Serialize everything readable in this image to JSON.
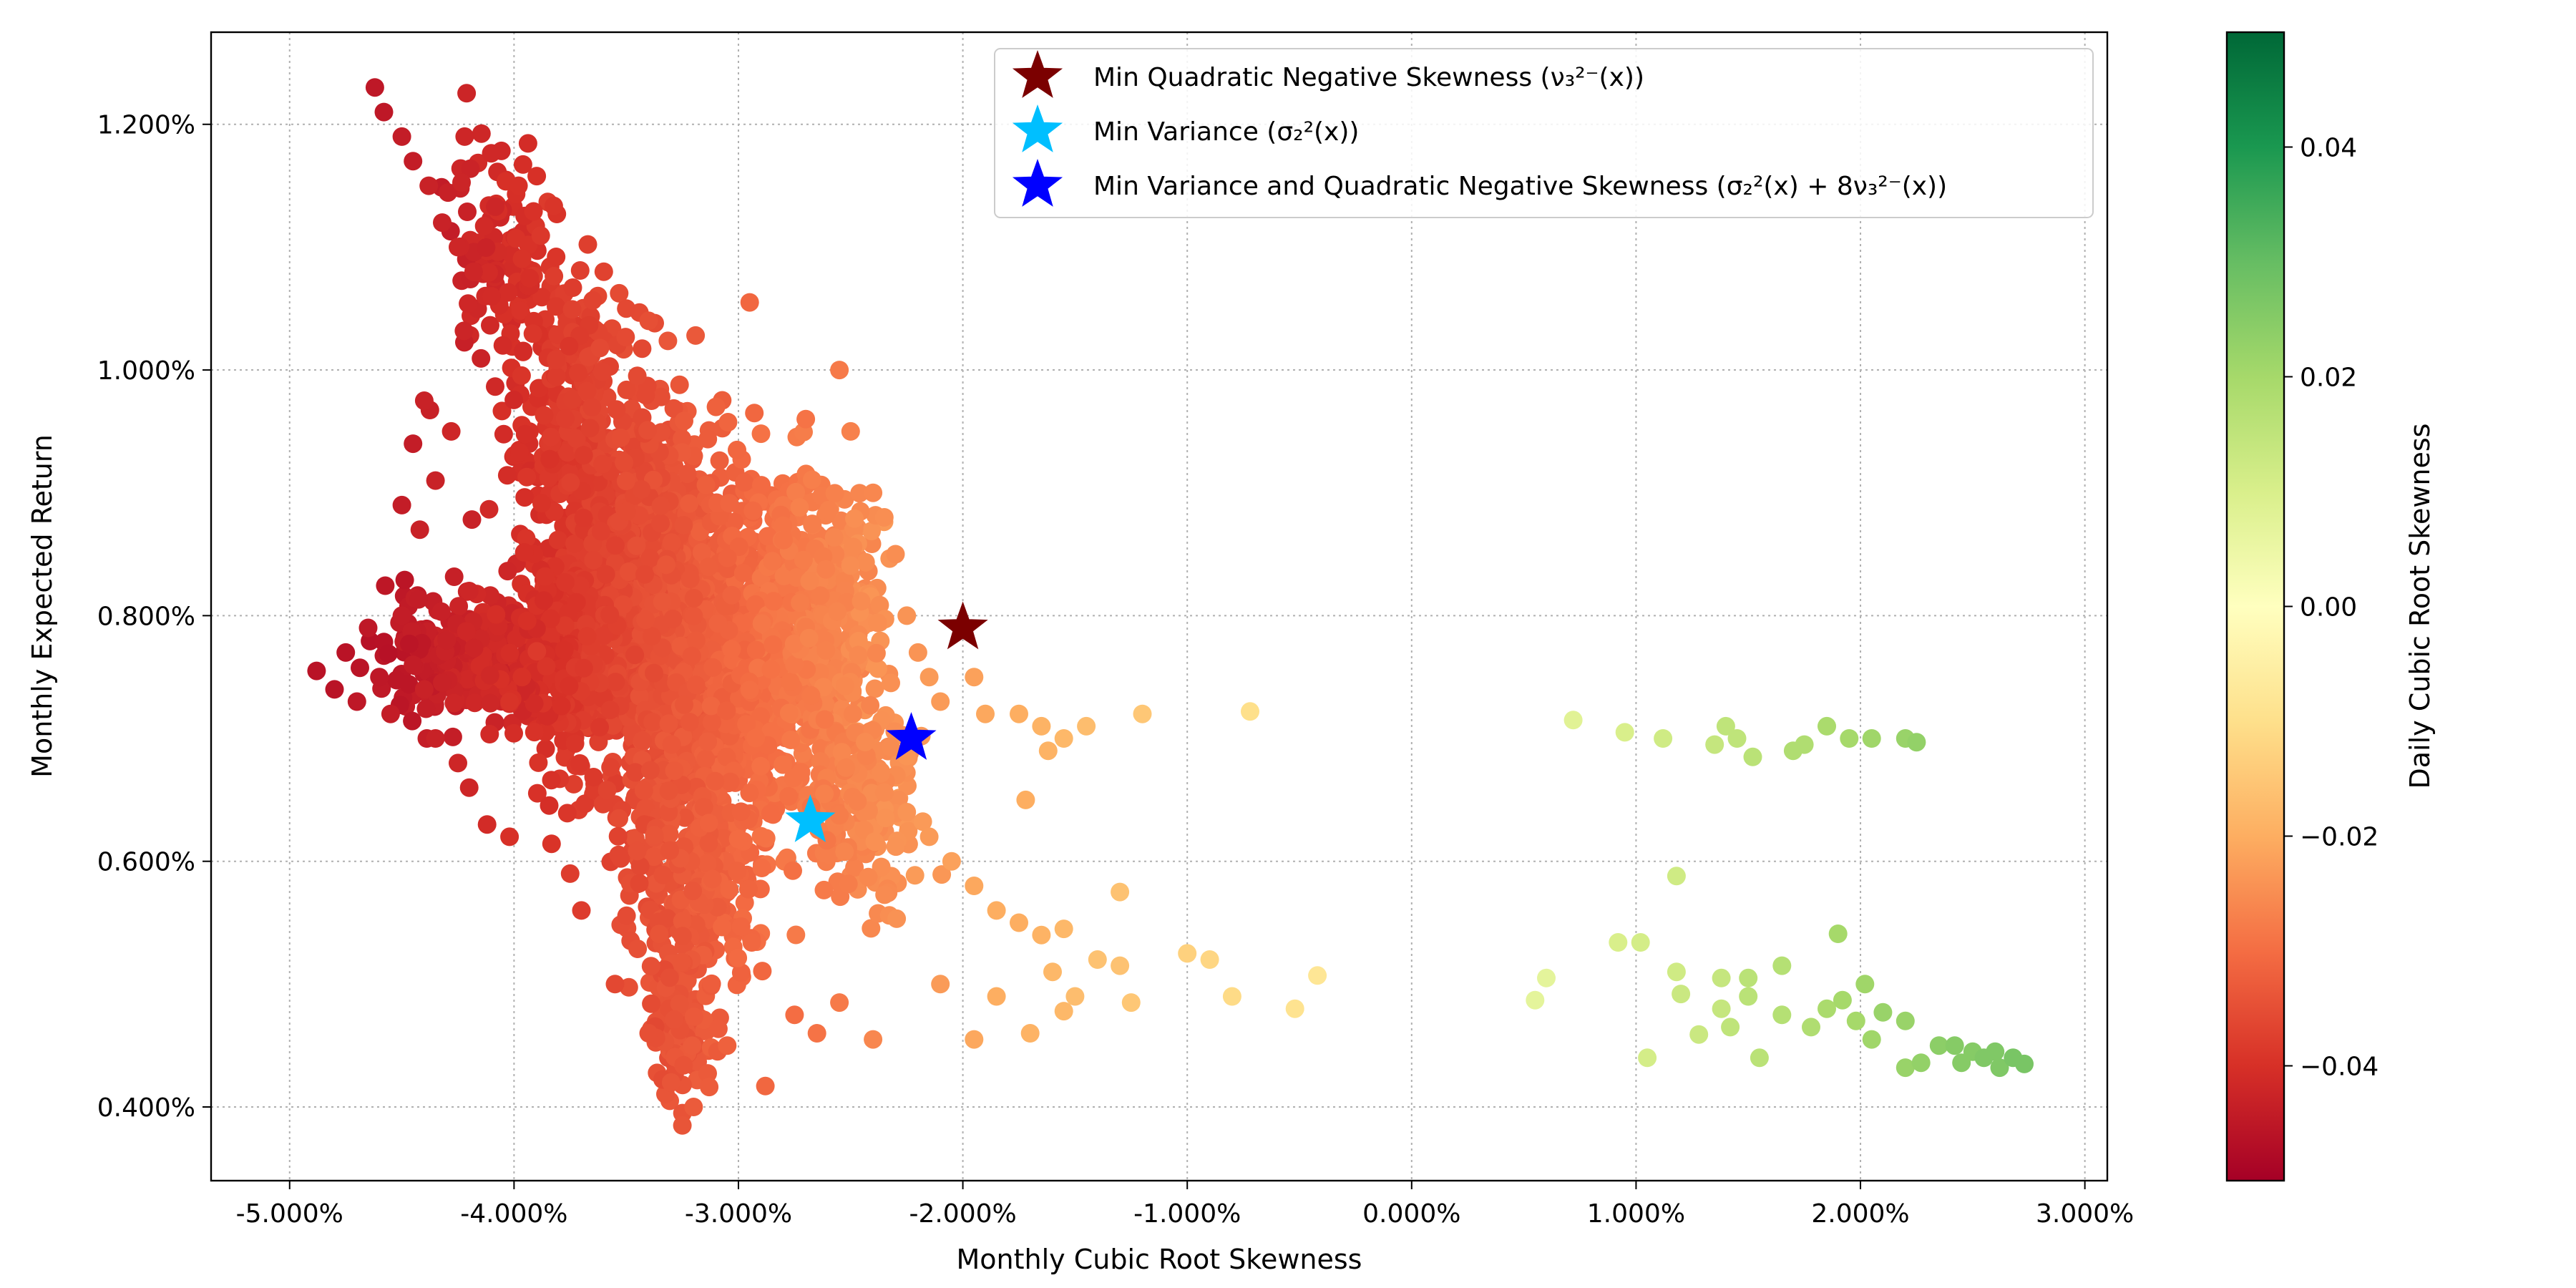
{
  "chart_data": {
    "type": "scatter",
    "title": "",
    "xlabel": "Monthly Cubic Root Skewness",
    "ylabel": "Monthly Expected Return",
    "xlim": [
      -5.35,
      3.1
    ],
    "ylim": [
      0.34,
      1.275
    ],
    "x_ticks": [
      {
        "value": -5,
        "label": "-5.000%"
      },
      {
        "value": -4,
        "label": "-4.000%"
      },
      {
        "value": -3,
        "label": "-3.000%"
      },
      {
        "value": -2,
        "label": "-2.000%"
      },
      {
        "value": -1,
        "label": "-1.000%"
      },
      {
        "value": 0,
        "label": "0.000%"
      },
      {
        "value": 1,
        "label": "1.000%"
      },
      {
        "value": 2,
        "label": "2.000%"
      },
      {
        "value": 3,
        "label": "3.000%"
      }
    ],
    "y_ticks": [
      {
        "value": 0.4,
        "label": "0.400%"
      },
      {
        "value": 0.6,
        "label": "0.600%"
      },
      {
        "value": 0.8,
        "label": "0.800%"
      },
      {
        "value": 1.0,
        "label": "1.000%"
      },
      {
        "value": 1.2,
        "label": "1.200%"
      }
    ],
    "grid": true,
    "legend_position": "top-right",
    "colorbar": {
      "label": "Daily Cubic Root Skewness",
      "colormap": "RdYlGn",
      "range": [
        -0.05,
        0.05
      ],
      "ticks": [
        {
          "value": -0.04,
          "label": "−0.04"
        },
        {
          "value": -0.02,
          "label": "−0.02"
        },
        {
          "value": 0.0,
          "label": "0.00"
        },
        {
          "value": 0.02,
          "label": "0.02"
        },
        {
          "value": 0.04,
          "label": "0.04"
        }
      ]
    },
    "markers": [
      {
        "name": "Min Quadratic Negative Skewness (ν₃²⁻(x))",
        "x": -2.0,
        "y": 0.79,
        "color": "#7b0000"
      },
      {
        "name": "Min Variance (σ₂²(x))",
        "x": -2.68,
        "y": 0.633,
        "color": "#00bfff"
      },
      {
        "name": "Min Variance and Quadratic Negative Skewness (σ₂²(x) + 8ν₃²⁻(x))",
        "x": -2.23,
        "y": 0.7,
        "color": "#0000ff"
      }
    ],
    "scatter_points": [
      {
        "x": -4.88,
        "y": 0.755,
        "c": -0.046
      },
      {
        "x": -4.8,
        "y": 0.74,
        "c": -0.046
      },
      {
        "x": -4.75,
        "y": 0.77,
        "c": -0.046
      },
      {
        "x": -4.7,
        "y": 0.73,
        "c": -0.045
      },
      {
        "x": -4.65,
        "y": 0.79,
        "c": -0.045
      },
      {
        "x": -4.6,
        "y": 0.75,
        "c": -0.045
      },
      {
        "x": -4.55,
        "y": 0.72,
        "c": -0.044
      },
      {
        "x": -4.5,
        "y": 0.8,
        "c": -0.044
      },
      {
        "x": -4.45,
        "y": 0.76,
        "c": -0.044
      },
      {
        "x": -4.4,
        "y": 0.74,
        "c": -0.043
      },
      {
        "x": -4.35,
        "y": 0.7,
        "c": -0.043
      },
      {
        "x": -4.3,
        "y": 0.78,
        "c": -0.043
      },
      {
        "x": -4.25,
        "y": 0.68,
        "c": -0.042
      },
      {
        "x": -4.2,
        "y": 0.82,
        "c": -0.042
      },
      {
        "x": -4.62,
        "y": 1.23,
        "c": -0.045
      },
      {
        "x": -4.58,
        "y": 1.21,
        "c": -0.045
      },
      {
        "x": -4.5,
        "y": 1.19,
        "c": -0.044
      },
      {
        "x": -4.45,
        "y": 1.17,
        "c": -0.044
      },
      {
        "x": -4.38,
        "y": 1.15,
        "c": -0.043
      },
      {
        "x": -4.32,
        "y": 1.12,
        "c": -0.043
      },
      {
        "x": -4.25,
        "y": 1.1,
        "c": -0.042
      },
      {
        "x": -4.18,
        "y": 1.08,
        "c": -0.042
      },
      {
        "x": -4.1,
        "y": 1.06,
        "c": -0.041
      },
      {
        "x": -4.22,
        "y": 1.19,
        "c": -0.042
      },
      {
        "x": -3.98,
        "y": 1.15,
        "c": -0.04
      },
      {
        "x": -4.05,
        "y": 1.02,
        "c": -0.041
      },
      {
        "x": -4.4,
        "y": 0.975,
        "c": -0.043
      },
      {
        "x": -4.45,
        "y": 0.94,
        "c": -0.044
      },
      {
        "x": -4.5,
        "y": 0.89,
        "c": -0.044
      },
      {
        "x": -4.42,
        "y": 0.87,
        "c": -0.043
      },
      {
        "x": -4.35,
        "y": 0.91,
        "c": -0.043
      },
      {
        "x": -4.28,
        "y": 0.95,
        "c": -0.042
      },
      {
        "x": -4.12,
        "y": 0.63,
        "c": -0.041
      },
      {
        "x": -4.02,
        "y": 0.62,
        "c": -0.04
      },
      {
        "x": -4.2,
        "y": 0.66,
        "c": -0.042
      },
      {
        "x": -3.6,
        "y": 1.08,
        "c": -0.037
      },
      {
        "x": -3.5,
        "y": 1.05,
        "c": -0.036
      },
      {
        "x": -3.4,
        "y": 1.04,
        "c": -0.035
      },
      {
        "x": -2.95,
        "y": 1.055,
        "c": -0.031
      },
      {
        "x": -2.55,
        "y": 1.0,
        "c": -0.028
      },
      {
        "x": -3.1,
        "y": 0.97,
        "c": -0.032
      },
      {
        "x": -2.7,
        "y": 0.96,
        "c": -0.029
      },
      {
        "x": -2.5,
        "y": 0.95,
        "c": -0.027
      },
      {
        "x": -2.4,
        "y": 0.9,
        "c": -0.026
      },
      {
        "x": -2.3,
        "y": 0.85,
        "c": -0.025
      },
      {
        "x": -2.35,
        "y": 0.88,
        "c": -0.025
      },
      {
        "x": -2.25,
        "y": 0.8,
        "c": -0.024
      },
      {
        "x": -2.2,
        "y": 0.77,
        "c": -0.024
      },
      {
        "x": -2.15,
        "y": 0.75,
        "c": -0.023
      },
      {
        "x": -2.1,
        "y": 0.73,
        "c": -0.023
      },
      {
        "x": -1.95,
        "y": 0.75,
        "c": -0.022
      },
      {
        "x": -1.9,
        "y": 0.72,
        "c": -0.021
      },
      {
        "x": -1.75,
        "y": 0.72,
        "c": -0.02
      },
      {
        "x": -1.65,
        "y": 0.71,
        "c": -0.019
      },
      {
        "x": -1.55,
        "y": 0.7,
        "c": -0.018
      },
      {
        "x": -1.45,
        "y": 0.71,
        "c": -0.017
      },
      {
        "x": -1.2,
        "y": 0.72,
        "c": -0.015
      },
      {
        "x": -0.72,
        "y": 0.722,
        "c": -0.01
      },
      {
        "x": -1.62,
        "y": 0.69,
        "c": -0.019
      },
      {
        "x": -1.72,
        "y": 0.65,
        "c": -0.02
      },
      {
        "x": -2.25,
        "y": 0.64,
        "c": -0.024
      },
      {
        "x": -2.15,
        "y": 0.62,
        "c": -0.023
      },
      {
        "x": -2.05,
        "y": 0.6,
        "c": -0.022
      },
      {
        "x": -1.95,
        "y": 0.58,
        "c": -0.021
      },
      {
        "x": -1.85,
        "y": 0.56,
        "c": -0.02
      },
      {
        "x": -1.75,
        "y": 0.55,
        "c": -0.02
      },
      {
        "x": -1.65,
        "y": 0.54,
        "c": -0.019
      },
      {
        "x": -1.55,
        "y": 0.545,
        "c": -0.018
      },
      {
        "x": -1.3,
        "y": 0.575,
        "c": -0.016
      },
      {
        "x": -1.6,
        "y": 0.51,
        "c": -0.018
      },
      {
        "x": -1.5,
        "y": 0.49,
        "c": -0.017
      },
      {
        "x": -1.4,
        "y": 0.52,
        "c": -0.016
      },
      {
        "x": -1.3,
        "y": 0.515,
        "c": -0.016
      },
      {
        "x": -1.25,
        "y": 0.485,
        "c": -0.015
      },
      {
        "x": -1.0,
        "y": 0.525,
        "c": -0.013
      },
      {
        "x": -0.9,
        "y": 0.52,
        "c": -0.012
      },
      {
        "x": -0.8,
        "y": 0.49,
        "c": -0.011
      },
      {
        "x": -0.52,
        "y": 0.48,
        "c": -0.009
      },
      {
        "x": -0.42,
        "y": 0.507,
        "c": -0.008
      },
      {
        "x": -1.55,
        "y": 0.478,
        "c": -0.018
      },
      {
        "x": -1.7,
        "y": 0.46,
        "c": -0.019
      },
      {
        "x": -1.85,
        "y": 0.49,
        "c": -0.02
      },
      {
        "x": -1.95,
        "y": 0.455,
        "c": -0.021
      },
      {
        "x": -2.1,
        "y": 0.5,
        "c": -0.023
      },
      {
        "x": -2.4,
        "y": 0.455,
        "c": -0.026
      },
      {
        "x": -2.65,
        "y": 0.46,
        "c": -0.029
      },
      {
        "x": -2.88,
        "y": 0.417,
        "c": -0.031
      },
      {
        "x": -2.55,
        "y": 0.485,
        "c": -0.028
      },
      {
        "x": -2.75,
        "y": 0.475,
        "c": -0.03
      },
      {
        "x": -3.05,
        "y": 0.45,
        "c": -0.032
      },
      {
        "x": -3.3,
        "y": 0.42,
        "c": -0.034
      },
      {
        "x": -3.25,
        "y": 0.385,
        "c": -0.034
      },
      {
        "x": -3.2,
        "y": 0.4,
        "c": -0.033
      },
      {
        "x": -3.4,
        "y": 0.46,
        "c": -0.035
      },
      {
        "x": -3.55,
        "y": 0.5,
        "c": -0.036
      },
      {
        "x": -3.7,
        "y": 0.56,
        "c": -0.038
      },
      {
        "x": -3.75,
        "y": 0.59,
        "c": -0.038
      },
      {
        "x": 0.72,
        "y": 0.715,
        "c": 0.008
      },
      {
        "x": 0.95,
        "y": 0.705,
        "c": 0.01
      },
      {
        "x": 1.12,
        "y": 0.7,
        "c": 0.012
      },
      {
        "x": 1.35,
        "y": 0.695,
        "c": 0.014
      },
      {
        "x": 1.4,
        "y": 0.71,
        "c": 0.015
      },
      {
        "x": 1.45,
        "y": 0.7,
        "c": 0.015
      },
      {
        "x": 1.52,
        "y": 0.685,
        "c": 0.016
      },
      {
        "x": 1.7,
        "y": 0.69,
        "c": 0.018
      },
      {
        "x": 1.75,
        "y": 0.695,
        "c": 0.018
      },
      {
        "x": 1.85,
        "y": 0.71,
        "c": 0.019
      },
      {
        "x": 1.95,
        "y": 0.7,
        "c": 0.02
      },
      {
        "x": 2.05,
        "y": 0.7,
        "c": 0.021
      },
      {
        "x": 2.2,
        "y": 0.7,
        "c": 0.022
      },
      {
        "x": 2.25,
        "y": 0.697,
        "c": 0.023
      },
      {
        "x": 0.55,
        "y": 0.487,
        "c": 0.007
      },
      {
        "x": 0.6,
        "y": 0.505,
        "c": 0.007
      },
      {
        "x": 0.92,
        "y": 0.534,
        "c": 0.01
      },
      {
        "x": 1.02,
        "y": 0.534,
        "c": 0.011
      },
      {
        "x": 1.05,
        "y": 0.44,
        "c": 0.011
      },
      {
        "x": 1.18,
        "y": 0.588,
        "c": 0.012
      },
      {
        "x": 1.18,
        "y": 0.51,
        "c": 0.012
      },
      {
        "x": 1.2,
        "y": 0.492,
        "c": 0.013
      },
      {
        "x": 1.28,
        "y": 0.459,
        "c": 0.013
      },
      {
        "x": 1.38,
        "y": 0.48,
        "c": 0.014
      },
      {
        "x": 1.38,
        "y": 0.505,
        "c": 0.014
      },
      {
        "x": 1.42,
        "y": 0.465,
        "c": 0.015
      },
      {
        "x": 1.5,
        "y": 0.49,
        "c": 0.016
      },
      {
        "x": 1.5,
        "y": 0.505,
        "c": 0.016
      },
      {
        "x": 1.55,
        "y": 0.44,
        "c": 0.016
      },
      {
        "x": 1.65,
        "y": 0.515,
        "c": 0.017
      },
      {
        "x": 1.65,
        "y": 0.475,
        "c": 0.017
      },
      {
        "x": 1.78,
        "y": 0.465,
        "c": 0.018
      },
      {
        "x": 1.85,
        "y": 0.48,
        "c": 0.019
      },
      {
        "x": 1.9,
        "y": 0.541,
        "c": 0.02
      },
      {
        "x": 1.92,
        "y": 0.487,
        "c": 0.02
      },
      {
        "x": 1.98,
        "y": 0.47,
        "c": 0.02
      },
      {
        "x": 2.02,
        "y": 0.5,
        "c": 0.021
      },
      {
        "x": 2.05,
        "y": 0.455,
        "c": 0.021
      },
      {
        "x": 2.1,
        "y": 0.477,
        "c": 0.022
      },
      {
        "x": 2.2,
        "y": 0.432,
        "c": 0.022
      },
      {
        "x": 2.2,
        "y": 0.47,
        "c": 0.022
      },
      {
        "x": 2.27,
        "y": 0.436,
        "c": 0.023
      },
      {
        "x": 2.35,
        "y": 0.45,
        "c": 0.024
      },
      {
        "x": 2.42,
        "y": 0.45,
        "c": 0.025
      },
      {
        "x": 2.45,
        "y": 0.436,
        "c": 0.025
      },
      {
        "x": 2.5,
        "y": 0.445,
        "c": 0.025
      },
      {
        "x": 2.55,
        "y": 0.44,
        "c": 0.026
      },
      {
        "x": 2.6,
        "y": 0.445,
        "c": 0.026
      },
      {
        "x": 2.62,
        "y": 0.432,
        "c": 0.026
      },
      {
        "x": 2.68,
        "y": 0.44,
        "c": 0.027
      },
      {
        "x": 2.73,
        "y": 0.435,
        "c": 0.027
      }
    ],
    "cloud_regions": [
      {
        "cx": -3.35,
        "cy": 0.8,
        "sx": 0.38,
        "sy": 0.11,
        "c": -0.035,
        "n": 900
      },
      {
        "cx": -3.0,
        "cy": 0.76,
        "sx": 0.35,
        "sy": 0.1,
        "c": -0.031,
        "n": 700
      },
      {
        "cx": -2.65,
        "cy": 0.8,
        "sx": 0.22,
        "sy": 0.08,
        "c": -0.027,
        "n": 350
      },
      {
        "cx": -3.6,
        "cy": 0.88,
        "sx": 0.28,
        "sy": 0.09,
        "c": -0.037,
        "n": 300
      },
      {
        "cx": -3.85,
        "cy": 0.76,
        "sx": 0.22,
        "sy": 0.05,
        "c": -0.04,
        "n": 250
      },
      {
        "cx": -3.2,
        "cy": 0.6,
        "sx": 0.22,
        "sy": 0.07,
        "c": -0.033,
        "n": 300
      },
      {
        "cx": -3.25,
        "cy": 0.48,
        "sx": 0.1,
        "sy": 0.05,
        "c": -0.034,
        "n": 120
      },
      {
        "cx": -4.05,
        "cy": 1.1,
        "sx": 0.18,
        "sy": 0.08,
        "c": -0.041,
        "n": 120
      },
      {
        "cx": -3.75,
        "cy": 1.0,
        "sx": 0.18,
        "sy": 0.06,
        "c": -0.038,
        "n": 150
      },
      {
        "cx": -4.3,
        "cy": 0.77,
        "sx": 0.22,
        "sy": 0.04,
        "c": -0.043,
        "n": 160
      },
      {
        "cx": -2.45,
        "cy": 0.65,
        "sx": 0.18,
        "sy": 0.06,
        "c": -0.026,
        "n": 180
      }
    ]
  }
}
